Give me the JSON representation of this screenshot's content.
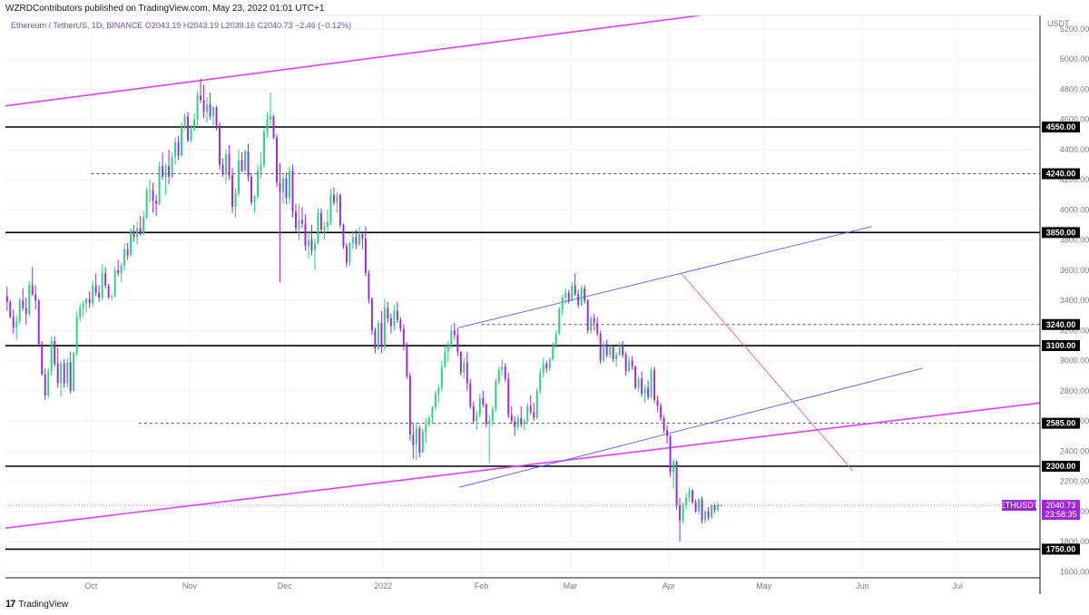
{
  "header": {
    "published": "WZRDContributors published on TradingView.com, May 23, 2022 01:01 UTC+1"
  },
  "footer": {
    "logo_text": "TradingView"
  },
  "chart_data": {
    "type": "candlestick",
    "symbol_line": "Ethereum / TetherUS, 1D, BINANCE  O2043.19  H2043.19  L2039.16  C2040.73  −2.46 (−0.12%)",
    "ohlc": {
      "open": 2043.19,
      "high": 2043.19,
      "low": 2039.16,
      "close": 2040.73,
      "change": -2.46,
      "change_pct": -0.12
    },
    "currency": "USDT",
    "y_ticks": [
      1600,
      1800,
      2000,
      2200,
      2400,
      2600,
      2800,
      3000,
      3200,
      3400,
      3600,
      3800,
      4000,
      4200,
      4400,
      4600,
      4800,
      5000,
      5200
    ],
    "x_ticks": [
      "Oct",
      "Nov",
      "Dec",
      "2022",
      "Feb",
      "Mar",
      "Apr",
      "May",
      "Jun",
      "Jul"
    ],
    "x_tick_dates": [
      "2021-10-01",
      "2021-11-01",
      "2021-12-01",
      "2022-01-01",
      "2022-02-01",
      "2022-03-01",
      "2022-04-01",
      "2022-05-01",
      "2022-06-01",
      "2022-07-01"
    ],
    "ylim": [
      1560,
      5290
    ],
    "xlim": [
      "2021-09-04",
      "2022-07-27"
    ],
    "price_label": {
      "symbol": "ETHUSDT",
      "value": "2040.73",
      "countdown": "23:58:35"
    },
    "horizontal_levels": [
      {
        "value": 4550,
        "label": "4550.00",
        "style": "solid"
      },
      {
        "value": 4240,
        "label": "4240.00",
        "style": "dashed",
        "from": "2021-10-01"
      },
      {
        "value": 3850,
        "label": "3850.00",
        "style": "solid"
      },
      {
        "value": 3240,
        "label": "3240.00",
        "style": "dashed",
        "from": "2022-02-01"
      },
      {
        "value": 3100,
        "label": "3100.00",
        "style": "solid"
      },
      {
        "value": 2585,
        "label": "2585.00",
        "style": "dashed",
        "from": "2021-10-16"
      },
      {
        "value": 2300,
        "label": "2300.00",
        "style": "solid"
      },
      {
        "value": 1750,
        "label": "1750.00",
        "style": "solid"
      }
    ],
    "trendlines": [
      {
        "color": "#e040fb",
        "from": [
          "2021-09-04",
          4690
        ],
        "to": [
          "2022-04-29",
          5340
        ]
      },
      {
        "color": "#e040fb",
        "from": [
          "2021-09-04",
          1890
        ],
        "to": [
          "2022-07-27",
          2720
        ]
      },
      {
        "color": "#5b5bff",
        "from": [
          "2022-01-25",
          3220
        ],
        "to": [
          "2022-04-05",
          3580
        ]
      },
      {
        "color": "#5b5bff",
        "from": [
          "2022-04-05",
          3580
        ],
        "to": [
          "2022-06-04",
          3890
        ]
      },
      {
        "color": "#5b5bff",
        "from": [
          "2022-01-25",
          2160
        ],
        "to": [
          "2022-06-20",
          2950
        ]
      },
      {
        "color": "#f06292",
        "from": [
          "2022-04-05",
          3580
        ],
        "to": [
          "2022-05-29",
          2270
        ]
      }
    ],
    "candles": [
      [
        3430,
        3490,
        3330,
        3390
      ],
      [
        3390,
        3400,
        3280,
        3290
      ],
      [
        3290,
        3340,
        3180,
        3220
      ],
      [
        3220,
        3300,
        3140,
        3260
      ],
      [
        3260,
        3420,
        3240,
        3400
      ],
      [
        3400,
        3480,
        3330,
        3350
      ],
      [
        3350,
        3420,
        3240,
        3310
      ],
      [
        3310,
        3530,
        3290,
        3500
      ],
      [
        3500,
        3620,
        3430,
        3440
      ],
      [
        3440,
        3500,
        3340,
        3400
      ],
      [
        3400,
        3410,
        3100,
        3110
      ],
      [
        3110,
        3130,
        2900,
        2910
      ],
      [
        2910,
        2950,
        2740,
        2770
      ],
      [
        2770,
        2950,
        2750,
        2930
      ],
      [
        2930,
        3160,
        2900,
        3130
      ],
      [
        3130,
        3160,
        2960,
        2980
      ],
      [
        2980,
        3090,
        2820,
        2850
      ],
      [
        2850,
        3000,
        2760,
        2980
      ],
      [
        2980,
        3010,
        2820,
        2850
      ],
      [
        2850,
        3020,
        2820,
        2990
      ],
      [
        2990,
        3060,
        2780,
        2800
      ],
      [
        2800,
        3060,
        2790,
        3050
      ],
      [
        3050,
        3330,
        3030,
        3290
      ],
      [
        3290,
        3380,
        3260,
        3350
      ],
      [
        3350,
        3400,
        3290,
        3380
      ],
      [
        3380,
        3420,
        3320,
        3410
      ],
      [
        3410,
        3460,
        3350,
        3380
      ],
      [
        3380,
        3530,
        3360,
        3500
      ],
      [
        3500,
        3580,
        3430,
        3450
      ],
      [
        3450,
        3500,
        3390,
        3420
      ],
      [
        3420,
        3640,
        3400,
        3580
      ],
      [
        3580,
        3620,
        3480,
        3500
      ],
      [
        3500,
        3510,
        3410,
        3420
      ],
      [
        3420,
        3440,
        3400,
        3430
      ],
      [
        3430,
        3620,
        3420,
        3600
      ],
      [
        3600,
        3670,
        3560,
        3580
      ],
      [
        3580,
        3650,
        3520,
        3630
      ],
      [
        3630,
        3780,
        3600,
        3740
      ],
      [
        3740,
        3780,
        3670,
        3700
      ],
      [
        3700,
        3880,
        3690,
        3860
      ],
      [
        3860,
        3900,
        3790,
        3820
      ],
      [
        3820,
        3920,
        3770,
        3880
      ],
      [
        3880,
        3960,
        3830,
        3840
      ],
      [
        3840,
        3990,
        3830,
        3950
      ],
      [
        3950,
        4150,
        3940,
        4130
      ],
      [
        4130,
        4200,
        4050,
        4130
      ],
      [
        4130,
        4180,
        3980,
        4060
      ],
      [
        4060,
        4100,
        3960,
        4040
      ],
      [
        4040,
        4320,
        4030,
        4290
      ],
      [
        4290,
        4380,
        4200,
        4220
      ],
      [
        4220,
        4310,
        4100,
        4290
      ],
      [
        4290,
        4400,
        4170,
        4220
      ],
      [
        4220,
        4380,
        4210,
        4350
      ],
      [
        4350,
        4480,
        4300,
        4450
      ],
      [
        4450,
        4490,
        4330,
        4360
      ],
      [
        4360,
        4580,
        4350,
        4550
      ],
      [
        4550,
        4640,
        4530,
        4620
      ],
      [
        4620,
        4650,
        4450,
        4460
      ],
      [
        4460,
        4560,
        4450,
        4540
      ],
      [
        4540,
        4640,
        4520,
        4600
      ],
      [
        4600,
        4790,
        4560,
        4760
      ],
      [
        4760,
        4870,
        4710,
        4730
      ],
      [
        4730,
        4830,
        4610,
        4650
      ],
      [
        4650,
        4750,
        4580,
        4700
      ],
      [
        4700,
        4780,
        4600,
        4620
      ],
      [
        4620,
        4690,
        4560,
        4680
      ],
      [
        4680,
        4690,
        4530,
        4560
      ],
      [
        4560,
        4580,
        4270,
        4300
      ],
      [
        4300,
        4340,
        4220,
        4240
      ],
      [
        4240,
        4400,
        4170,
        4370
      ],
      [
        4370,
        4430,
        4200,
        4230
      ],
      [
        4230,
        4280,
        3980,
        4020
      ],
      [
        4020,
        4140,
        3950,
        4110
      ],
      [
        4110,
        4400,
        4090,
        4330
      ],
      [
        4330,
        4380,
        4250,
        4260
      ],
      [
        4260,
        4400,
        4250,
        4390
      ],
      [
        4390,
        4440,
        4190,
        4220
      ],
      [
        4220,
        4240,
        4030,
        4050
      ],
      [
        4050,
        4100,
        3980,
        4090
      ],
      [
        4090,
        4300,
        4070,
        4260
      ],
      [
        4260,
        4380,
        4210,
        4300
      ],
      [
        4300,
        4540,
        4280,
        4520
      ],
      [
        4520,
        4650,
        4480,
        4600
      ],
      [
        4600,
        4780,
        4560,
        4620
      ],
      [
        4620,
        4630,
        4470,
        4480
      ],
      [
        4480,
        4500,
        4150,
        4180
      ],
      [
        4180,
        4310,
        3520,
        4120
      ],
      [
        4120,
        4230,
        4040,
        4210
      ],
      [
        4210,
        4250,
        4040,
        4080
      ],
      [
        4080,
        4290,
        4040,
        4260
      ],
      [
        4260,
        4300,
        3950,
        3990
      ],
      [
        3990,
        4040,
        3850,
        3880
      ],
      [
        3880,
        4040,
        3800,
        3930
      ],
      [
        3930,
        4020,
        3880,
        3910
      ],
      [
        3910,
        3970,
        3730,
        3760
      ],
      [
        3760,
        3860,
        3680,
        3800
      ],
      [
        3800,
        3900,
        3700,
        3730
      ],
      [
        3730,
        3810,
        3600,
        3780
      ],
      [
        3780,
        4010,
        3770,
        3980
      ],
      [
        3980,
        4010,
        3850,
        3870
      ],
      [
        3870,
        3920,
        3800,
        3890
      ],
      [
        3890,
        4000,
        3860,
        3920
      ],
      [
        3920,
        4140,
        3900,
        4100
      ],
      [
        4100,
        4150,
        4030,
        4050
      ],
      [
        4050,
        4120,
        3980,
        4100
      ],
      [
        4100,
        4110,
        3880,
        3900
      ],
      [
        3900,
        3910,
        3740,
        3760
      ],
      [
        3760,
        3780,
        3620,
        3650
      ],
      [
        3650,
        3790,
        3630,
        3780
      ],
      [
        3780,
        3860,
        3740,
        3820
      ],
      [
        3820,
        3870,
        3740,
        3770
      ],
      [
        3770,
        3890,
        3760,
        3840
      ],
      [
        3840,
        3850,
        3740,
        3810
      ],
      [
        3810,
        3890,
        3560,
        3580
      ],
      [
        3580,
        3600,
        3380,
        3410
      ],
      [
        3410,
        3420,
        3170,
        3200
      ],
      [
        3200,
        3220,
        3050,
        3080
      ],
      [
        3080,
        3270,
        3070,
        3250
      ],
      [
        3250,
        3330,
        3050,
        3090
      ],
      [
        3090,
        3410,
        3070,
        3350
      ],
      [
        3350,
        3390,
        3250,
        3280
      ],
      [
        3280,
        3310,
        3180,
        3230
      ],
      [
        3230,
        3370,
        3200,
        3330
      ],
      [
        3330,
        3390,
        3250,
        3270
      ],
      [
        3270,
        3290,
        3190,
        3210
      ],
      [
        3210,
        3240,
        3070,
        3100
      ],
      [
        3100,
        3120,
        2880,
        2900
      ],
      [
        2900,
        2920,
        2470,
        2510
      ],
      [
        2510,
        2580,
        2350,
        2440
      ],
      [
        2440,
        2590,
        2340,
        2550
      ],
      [
        2550,
        2570,
        2360,
        2390
      ],
      [
        2390,
        2550,
        2390,
        2530
      ],
      [
        2530,
        2620,
        2450,
        2580
      ],
      [
        2580,
        2640,
        2560,
        2620
      ],
      [
        2620,
        2700,
        2580,
        2690
      ],
      [
        2690,
        2800,
        2670,
        2780
      ],
      [
        2780,
        2840,
        2720,
        2820
      ],
      [
        2820,
        3000,
        2800,
        2960
      ],
      [
        2960,
        3100,
        2950,
        3060
      ],
      [
        3060,
        3130,
        2990,
        3100
      ],
      [
        3100,
        3240,
        3080,
        3200
      ],
      [
        3200,
        3250,
        3140,
        3170
      ],
      [
        3170,
        3220,
        3030,
        3060
      ],
      [
        3060,
        3060,
        2900,
        2920
      ],
      [
        2920,
        3020,
        2880,
        2990
      ],
      [
        2990,
        3060,
        2800,
        2850
      ],
      [
        2850,
        2880,
        2680,
        2700
      ],
      [
        2700,
        2730,
        2580,
        2600
      ],
      [
        2600,
        2670,
        2540,
        2640
      ],
      [
        2640,
        2780,
        2620,
        2750
      ],
      [
        2750,
        2800,
        2690,
        2710
      ],
      [
        2710,
        2720,
        2560,
        2580
      ],
      [
        2580,
        2640,
        2320,
        2600
      ],
      [
        2600,
        2700,
        2570,
        2680
      ],
      [
        2680,
        2880,
        2660,
        2860
      ],
      [
        2860,
        2960,
        2840,
        2940
      ],
      [
        2940,
        3010,
        2900,
        2960
      ],
      [
        2960,
        2980,
        2860,
        2880
      ],
      [
        2880,
        2920,
        2620,
        2640
      ],
      [
        2640,
        2700,
        2580,
        2600
      ],
      [
        2600,
        2630,
        2500,
        2560
      ],
      [
        2560,
        2640,
        2540,
        2620
      ],
      [
        2620,
        2700,
        2560,
        2580
      ],
      [
        2580,
        2620,
        2540,
        2600
      ],
      [
        2600,
        2720,
        2590,
        2700
      ],
      [
        2700,
        2770,
        2640,
        2660
      ],
      [
        2660,
        2720,
        2600,
        2620
      ],
      [
        2620,
        2820,
        2610,
        2800
      ],
      [
        2800,
        2950,
        2780,
        2920
      ],
      [
        2920,
        3020,
        2890,
        2980
      ],
      [
        2980,
        3000,
        2920,
        2950
      ],
      [
        2950,
        3020,
        2930,
        3010
      ],
      [
        3010,
        3120,
        3000,
        3100
      ],
      [
        3100,
        3200,
        3080,
        3180
      ],
      [
        3180,
        3360,
        3170,
        3340
      ],
      [
        3340,
        3440,
        3300,
        3420
      ],
      [
        3420,
        3480,
        3380,
        3450
      ],
      [
        3450,
        3470,
        3380,
        3400
      ],
      [
        3400,
        3520,
        3390,
        3500
      ],
      [
        3500,
        3580,
        3430,
        3440
      ],
      [
        3440,
        3470,
        3350,
        3370
      ],
      [
        3370,
        3500,
        3360,
        3480
      ],
      [
        3480,
        3500,
        3380,
        3400
      ],
      [
        3400,
        3410,
        3180,
        3200
      ],
      [
        3200,
        3300,
        3180,
        3280
      ],
      [
        3280,
        3310,
        3200,
        3250
      ],
      [
        3250,
        3290,
        3160,
        3180
      ],
      [
        3180,
        3200,
        2980,
        3000
      ],
      [
        3000,
        3130,
        2990,
        3110
      ],
      [
        3110,
        3140,
        3020,
        3040
      ],
      [
        3040,
        3110,
        3020,
        3090
      ],
      [
        3090,
        3100,
        2990,
        3010
      ],
      [
        3010,
        3060,
        2960,
        3040
      ],
      [
        3040,
        3120,
        3030,
        3100
      ],
      [
        3100,
        3130,
        3020,
        3040
      ],
      [
        3040,
        3060,
        2900,
        2930
      ],
      [
        2930,
        3030,
        2920,
        3000
      ],
      [
        3000,
        3030,
        2940,
        2960
      ],
      [
        2960,
        2970,
        2810,
        2820
      ],
      [
        2820,
        2900,
        2790,
        2880
      ],
      [
        2880,
        2930,
        2760,
        2780
      ],
      [
        2780,
        2840,
        2720,
        2820
      ],
      [
        2820,
        2870,
        2740,
        2760
      ],
      [
        2760,
        2960,
        2750,
        2940
      ],
      [
        2940,
        2960,
        2720,
        2740
      ],
      [
        2740,
        2770,
        2660,
        2700
      ],
      [
        2700,
        2720,
        2600,
        2620
      ],
      [
        2620,
        2640,
        2520,
        2540
      ],
      [
        2540,
        2570,
        2450,
        2500
      ],
      [
        2500,
        2510,
        2230,
        2260
      ],
      [
        2260,
        2350,
        2150,
        2330
      ],
      [
        2330,
        2340,
        2010,
        2040
      ],
      [
        2040,
        2090,
        1800,
        1940
      ],
      [
        1940,
        2060,
        1920,
        2040
      ],
      [
        2040,
        2120,
        2010,
        2090
      ],
      [
        2090,
        2160,
        2060,
        2140
      ],
      [
        2140,
        2150,
        2050,
        2060
      ],
      [
        2060,
        2080,
        1990,
        2000
      ],
      [
        2000,
        2090,
        1980,
        2080
      ],
      [
        2080,
        2100,
        1920,
        1940
      ],
      [
        1940,
        2010,
        1920,
        2000
      ],
      [
        2000,
        2030,
        1940,
        1960
      ],
      [
        1960,
        2050,
        1950,
        2040
      ],
      [
        2040,
        2050,
        1990,
        2010
      ],
      [
        2010,
        2060,
        2000,
        2043
      ],
      [
        2043.19,
        2043.19,
        2039.16,
        2040.73
      ]
    ],
    "candles_start": "2021-09-04",
    "bull_color": "#26d37c",
    "bear_color": "#9c27d9"
  }
}
